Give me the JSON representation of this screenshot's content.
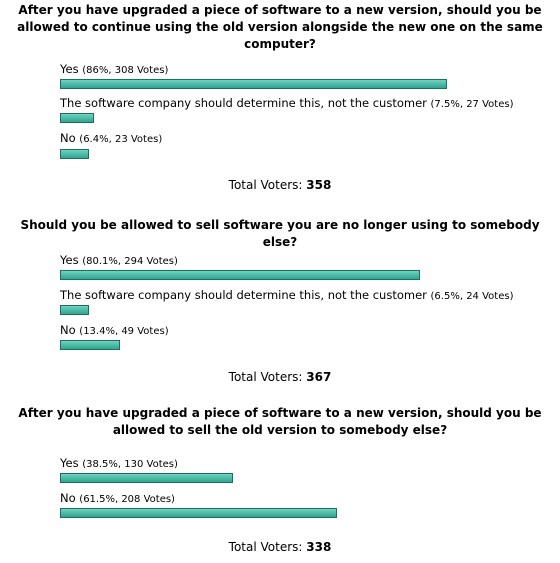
{
  "polls": [
    {
      "question": "After you have upgraded a piece of software to a new version, should you be allowed to continue using the old version alongside the new one on the same computer?",
      "options": [
        {
          "label": "Yes",
          "stats": "(86%, 308 Votes)",
          "percent": 86
        },
        {
          "label": "The software company should determine this, not the customer",
          "stats": "(7.5%, 27 Votes)",
          "percent": 7.5
        },
        {
          "label": "No",
          "stats": "(6.4%, 23 Votes)",
          "percent": 6.4
        }
      ],
      "total_label": "Total Voters:",
      "total_value": "358"
    },
    {
      "question": "Should you be allowed to sell software you are no longer using to somebody else?",
      "options": [
        {
          "label": "Yes",
          "stats": "(80.1%, 294 Votes)",
          "percent": 80.1
        },
        {
          "label": "The software company should determine this, not the customer",
          "stats": "(6.5%, 24 Votes)",
          "percent": 6.5
        },
        {
          "label": "No",
          "stats": "(13.4%, 49 Votes)",
          "percent": 13.4
        }
      ],
      "total_label": "Total Voters:",
      "total_value": "367"
    },
    {
      "question": "After you have upgraded a piece of software to a new version, should you be allowed to sell the old version to somebody else?",
      "options": [
        {
          "label": "Yes",
          "stats": "(38.5%, 130 Votes)",
          "percent": 38.5
        },
        {
          "label": "No",
          "stats": "(61.5%, 208 Votes)",
          "percent": 61.5
        }
      ],
      "total_label": "Total Voters:",
      "total_value": "338"
    }
  ],
  "colors": {
    "bar_fill": "#3cb8a0",
    "bar_border": "#1f6f60"
  }
}
